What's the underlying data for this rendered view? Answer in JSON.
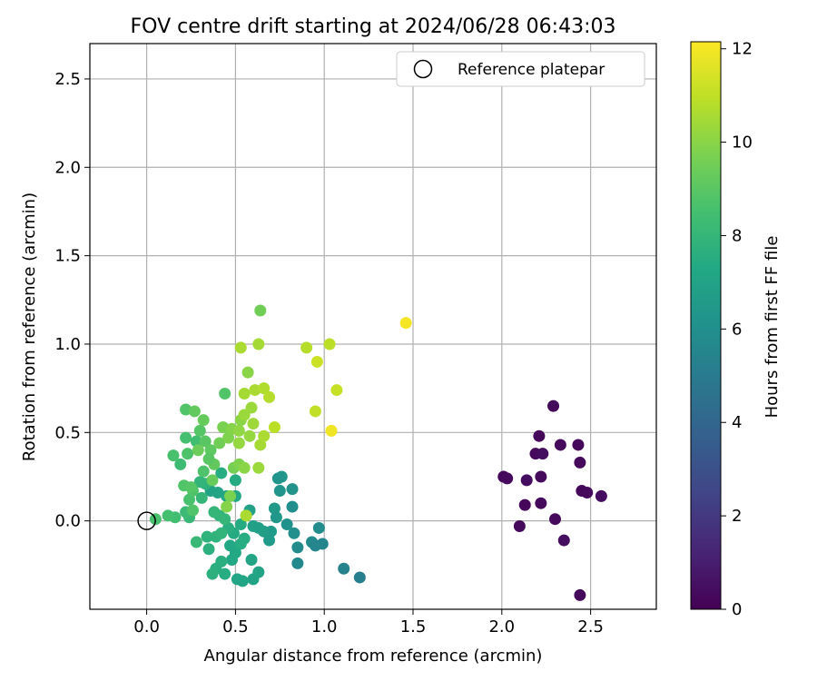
{
  "chart_data": {
    "type": "scatter",
    "title": "FOV centre drift starting at 2024/06/28 06:43:03",
    "xlabel": "Angular distance from reference (arcmin)",
    "ylabel": "Rotation from reference (arcmin)",
    "xlim": [
      -0.32,
      2.87
    ],
    "ylim": [
      -0.5,
      2.7
    ],
    "x_ticks": [
      "0.0",
      "0.5",
      "1.0",
      "1.5",
      "2.0",
      "2.5"
    ],
    "x_tick_values": [
      0,
      0.5,
      1.0,
      1.5,
      2.0,
      2.5
    ],
    "y_ticks": [
      "0.0",
      "0.5",
      "1.0",
      "1.5",
      "2.0",
      "2.5"
    ],
    "y_tick_values": [
      0,
      0.5,
      1.0,
      1.5,
      2.0,
      2.5
    ],
    "grid": true,
    "legend": {
      "placement": "top-right",
      "entries": [
        "Reference platepar"
      ]
    },
    "reference_point": {
      "x": 0.0,
      "y": 0.0,
      "marker": "open-circle"
    },
    "colorbar": {
      "label": "Hours from first FF file",
      "range": [
        0,
        12.15
      ],
      "ticks": [
        "0",
        "2",
        "4",
        "6",
        "8",
        "10",
        "12"
      ],
      "tick_values": [
        0,
        2,
        4,
        6,
        8,
        10,
        12
      ],
      "colormap": "viridis"
    },
    "points": [
      {
        "x": 2.29,
        "y": 0.65,
        "t": 0.3
      },
      {
        "x": 2.21,
        "y": 0.48,
        "t": 0.2
      },
      {
        "x": 2.33,
        "y": 0.43,
        "t": 0.3
      },
      {
        "x": 2.43,
        "y": 0.43,
        "t": 0.2
      },
      {
        "x": 2.19,
        "y": 0.38,
        "t": 0.3
      },
      {
        "x": 2.23,
        "y": 0.38,
        "t": 0.4
      },
      {
        "x": 2.44,
        "y": 0.33,
        "t": 0.3
      },
      {
        "x": 2.01,
        "y": 0.25,
        "t": 0.2
      },
      {
        "x": 2.03,
        "y": 0.24,
        "t": 0.3
      },
      {
        "x": 2.14,
        "y": 0.23,
        "t": 0.4
      },
      {
        "x": 2.22,
        "y": 0.25,
        "t": 0.3
      },
      {
        "x": 2.45,
        "y": 0.17,
        "t": 0.2
      },
      {
        "x": 2.48,
        "y": 0.16,
        "t": 0.3
      },
      {
        "x": 2.56,
        "y": 0.14,
        "t": 0.4
      },
      {
        "x": 2.22,
        "y": 0.1,
        "t": 0.3
      },
      {
        "x": 2.13,
        "y": 0.09,
        "t": 0.2
      },
      {
        "x": 2.3,
        "y": 0.01,
        "t": 0.3
      },
      {
        "x": 2.1,
        "y": -0.03,
        "t": 0.3
      },
      {
        "x": 2.35,
        "y": -0.11,
        "t": 0.4
      },
      {
        "x": 2.44,
        "y": -0.42,
        "t": 0.3
      },
      {
        "x": 1.2,
        "y": -0.32,
        "t": 5.2
      },
      {
        "x": 1.11,
        "y": -0.27,
        "t": 5.4
      },
      {
        "x": 0.85,
        "y": -0.24,
        "t": 5.7
      },
      {
        "x": 0.99,
        "y": -0.13,
        "t": 5.5
      },
      {
        "x": 0.93,
        "y": -0.12,
        "t": 5.8
      },
      {
        "x": 0.95,
        "y": -0.14,
        "t": 5.6
      },
      {
        "x": 0.97,
        "y": -0.04,
        "t": 5.9
      },
      {
        "x": 0.85,
        "y": -0.15,
        "t": 5.8
      },
      {
        "x": 0.83,
        "y": -0.07,
        "t": 6.0
      },
      {
        "x": 0.79,
        "y": -0.02,
        "t": 6.1
      },
      {
        "x": 0.82,
        "y": 0.08,
        "t": 6.0
      },
      {
        "x": 0.82,
        "y": 0.18,
        "t": 6.2
      },
      {
        "x": 0.75,
        "y": 0.17,
        "t": 6.3
      },
      {
        "x": 0.76,
        "y": 0.25,
        "t": 6.4
      },
      {
        "x": 0.74,
        "y": 0.24,
        "t": 6.3
      },
      {
        "x": 0.72,
        "y": 0.07,
        "t": 6.5
      },
      {
        "x": 0.73,
        "y": 0.02,
        "t": 6.4
      },
      {
        "x": 0.7,
        "y": -0.06,
        "t": 6.6
      },
      {
        "x": 0.69,
        "y": -0.11,
        "t": 6.6
      },
      {
        "x": 0.66,
        "y": -0.06,
        "t": 6.7
      },
      {
        "x": 0.6,
        "y": -0.03,
        "t": 6.8
      },
      {
        "x": 0.63,
        "y": -0.04,
        "t": 6.8
      },
      {
        "x": 0.58,
        "y": 0.06,
        "t": 6.9
      },
      {
        "x": 0.56,
        "y": 0.03,
        "t": 7.0
      },
      {
        "x": 0.6,
        "y": -0.33,
        "t": 7.0
      },
      {
        "x": 0.63,
        "y": -0.29,
        "t": 7.1
      },
      {
        "x": 0.59,
        "y": -0.22,
        "t": 7.1
      },
      {
        "x": 0.54,
        "y": -0.34,
        "t": 7.2
      },
      {
        "x": 0.51,
        "y": -0.33,
        "t": 7.2
      },
      {
        "x": 0.48,
        "y": -0.22,
        "t": 7.3
      },
      {
        "x": 0.5,
        "y": -0.18,
        "t": 7.3
      },
      {
        "x": 0.47,
        "y": -0.14,
        "t": 7.3
      },
      {
        "x": 0.49,
        "y": -0.07,
        "t": 7.4
      },
      {
        "x": 0.53,
        "y": -0.02,
        "t": 7.4
      },
      {
        "x": 0.55,
        "y": -0.1,
        "t": 7.5
      },
      {
        "x": 0.53,
        "y": -0.13,
        "t": 7.5
      },
      {
        "x": 0.46,
        "y": -0.04,
        "t": 7.6
      },
      {
        "x": 0.44,
        "y": -0.3,
        "t": 7.5
      },
      {
        "x": 0.42,
        "y": -0.23,
        "t": 7.6
      },
      {
        "x": 0.39,
        "y": -0.27,
        "t": 7.6
      },
      {
        "x": 0.37,
        "y": -0.3,
        "t": 7.7
      },
      {
        "x": 0.35,
        "y": -0.16,
        "t": 7.7
      },
      {
        "x": 0.34,
        "y": -0.09,
        "t": 7.8
      },
      {
        "x": 0.39,
        "y": -0.09,
        "t": 7.8
      },
      {
        "x": 0.42,
        "y": -0.07,
        "t": 7.9
      },
      {
        "x": 0.41,
        "y": 0.03,
        "t": 7.9
      },
      {
        "x": 0.44,
        "y": 0.01,
        "t": 8.0
      },
      {
        "x": 0.38,
        "y": 0.05,
        "t": 8.0
      },
      {
        "x": 0.36,
        "y": 0.17,
        "t": 7.0
      },
      {
        "x": 0.4,
        "y": 0.16,
        "t": 7.1
      },
      {
        "x": 0.45,
        "y": 0.14,
        "t": 7.2
      },
      {
        "x": 0.5,
        "y": 0.14,
        "t": 7.3
      },
      {
        "x": 0.5,
        "y": 0.23,
        "t": 7.4
      },
      {
        "x": 0.42,
        "y": 0.27,
        "t": 7.5
      },
      {
        "x": 0.33,
        "y": 0.21,
        "t": 7.8
      },
      {
        "x": 0.3,
        "y": 0.22,
        "t": 7.9
      },
      {
        "x": 0.31,
        "y": 0.13,
        "t": 8.0
      },
      {
        "x": 0.28,
        "y": -0.12,
        "t": 8.1
      },
      {
        "x": 0.24,
        "y": 0.02,
        "t": 8.1
      },
      {
        "x": 0.22,
        "y": 0.05,
        "t": 8.2
      },
      {
        "x": 0.16,
        "y": 0.02,
        "t": 8.4
      },
      {
        "x": 0.12,
        "y": 0.03,
        "t": 8.5
      },
      {
        "x": 0.05,
        "y": 0.01,
        "t": 8.6
      },
      {
        "x": 0.24,
        "y": 0.12,
        "t": 8.6
      },
      {
        "x": 0.26,
        "y": 0.17,
        "t": 8.7
      },
      {
        "x": 0.26,
        "y": 0.06,
        "t": 8.8
      },
      {
        "x": 0.21,
        "y": 0.2,
        "t": 8.8
      },
      {
        "x": 0.25,
        "y": 0.19,
        "t": 8.9
      },
      {
        "x": 0.19,
        "y": 0.32,
        "t": 8.3
      },
      {
        "x": 0.15,
        "y": 0.37,
        "t": 8.6
      },
      {
        "x": 0.23,
        "y": 0.38,
        "t": 8.7
      },
      {
        "x": 0.28,
        "y": 0.45,
        "t": 8.4
      },
      {
        "x": 0.22,
        "y": 0.47,
        "t": 8.5
      },
      {
        "x": 0.3,
        "y": 0.51,
        "t": 8.9
      },
      {
        "x": 0.33,
        "y": 0.45,
        "t": 9.0
      },
      {
        "x": 0.36,
        "y": 0.4,
        "t": 9.1
      },
      {
        "x": 0.38,
        "y": 0.32,
        "t": 9.2
      },
      {
        "x": 0.35,
        "y": 0.35,
        "t": 9.0
      },
      {
        "x": 0.32,
        "y": 0.28,
        "t": 8.7
      },
      {
        "x": 0.37,
        "y": 0.23,
        "t": 9.3
      },
      {
        "x": 0.29,
        "y": 0.4,
        "t": 9.4
      },
      {
        "x": 0.22,
        "y": 0.63,
        "t": 8.8
      },
      {
        "x": 0.27,
        "y": 0.62,
        "t": 9.2
      },
      {
        "x": 0.32,
        "y": 0.57,
        "t": 9.3
      },
      {
        "x": 0.44,
        "y": 0.72,
        "t": 8.8
      },
      {
        "x": 0.41,
        "y": 0.44,
        "t": 9.5
      },
      {
        "x": 0.43,
        "y": 0.53,
        "t": 9.7
      },
      {
        "x": 0.46,
        "y": 0.47,
        "t": 9.8
      },
      {
        "x": 0.48,
        "y": 0.52,
        "t": 9.9
      },
      {
        "x": 0.49,
        "y": 0.3,
        "t": 9.6
      },
      {
        "x": 0.52,
        "y": 0.32,
        "t": 9.8
      },
      {
        "x": 0.55,
        "y": 0.3,
        "t": 10.0
      },
      {
        "x": 0.52,
        "y": 0.51,
        "t": 10.1
      },
      {
        "x": 0.53,
        "y": 0.57,
        "t": 10.0
      },
      {
        "x": 0.52,
        "y": 0.44,
        "t": 10.2
      },
      {
        "x": 0.47,
        "y": 0.14,
        "t": 9.7
      },
      {
        "x": 0.45,
        "y": 0.08,
        "t": 9.9
      },
      {
        "x": 0.56,
        "y": 0.03,
        "t": 10.6
      },
      {
        "x": 0.58,
        "y": 0.48,
        "t": 10.2
      },
      {
        "x": 0.59,
        "y": 0.64,
        "t": 10.3
      },
      {
        "x": 0.6,
        "y": 0.55,
        "t": 10.4
      },
      {
        "x": 0.63,
        "y": 0.3,
        "t": 10.3
      },
      {
        "x": 0.64,
        "y": 0.43,
        "t": 10.5
      },
      {
        "x": 0.66,
        "y": 0.48,
        "t": 10.6
      },
      {
        "x": 0.55,
        "y": 0.72,
        "t": 10.5
      },
      {
        "x": 0.55,
        "y": 0.6,
        "t": 10.3
      },
      {
        "x": 0.61,
        "y": 0.74,
        "t": 10.6
      },
      {
        "x": 0.66,
        "y": 0.75,
        "t": 10.7
      },
      {
        "x": 0.69,
        "y": 0.7,
        "t": 10.8
      },
      {
        "x": 0.72,
        "y": 0.53,
        "t": 10.9
      },
      {
        "x": 0.57,
        "y": 0.84,
        "t": 10.0
      },
      {
        "x": 0.53,
        "y": 0.98,
        "t": 10.6
      },
      {
        "x": 0.63,
        "y": 1.0,
        "t": 10.5
      },
      {
        "x": 0.64,
        "y": 1.19,
        "t": 9.5
      },
      {
        "x": 0.9,
        "y": 0.98,
        "t": 10.8
      },
      {
        "x": 0.96,
        "y": 0.9,
        "t": 11.2
      },
      {
        "x": 1.03,
        "y": 1.0,
        "t": 10.9
      },
      {
        "x": 0.95,
        "y": 0.62,
        "t": 11.0
      },
      {
        "x": 1.07,
        "y": 0.74,
        "t": 11.1
      },
      {
        "x": 1.04,
        "y": 0.51,
        "t": 11.9
      },
      {
        "x": 1.46,
        "y": 1.12,
        "t": 12.0
      }
    ]
  }
}
